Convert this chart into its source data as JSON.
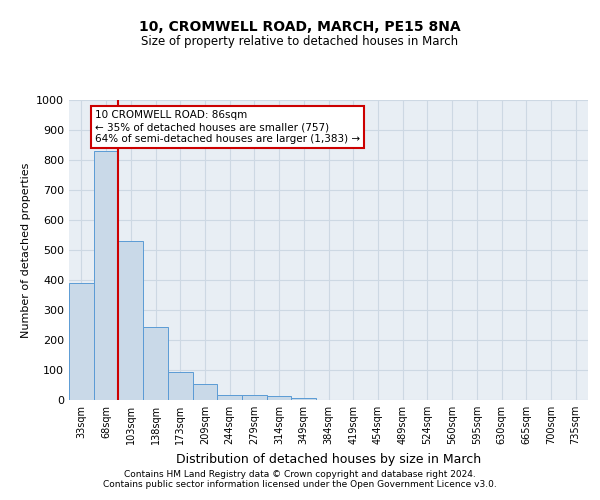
{
  "title1": "10, CROMWELL ROAD, MARCH, PE15 8NA",
  "title2": "Size of property relative to detached houses in March",
  "xlabel": "Distribution of detached houses by size in March",
  "ylabel": "Number of detached properties",
  "bar_labels": [
    "33sqm",
    "68sqm",
    "103sqm",
    "138sqm",
    "173sqm",
    "209sqm",
    "244sqm",
    "279sqm",
    "314sqm",
    "349sqm",
    "384sqm",
    "419sqm",
    "454sqm",
    "489sqm",
    "524sqm",
    "560sqm",
    "595sqm",
    "630sqm",
    "665sqm",
    "700sqm",
    "735sqm"
  ],
  "bar_values": [
    390,
    830,
    530,
    243,
    95,
    52,
    18,
    16,
    12,
    6,
    0,
    0,
    0,
    0,
    0,
    0,
    0,
    0,
    0,
    0,
    0
  ],
  "bar_color": "#c9d9e8",
  "bar_edge_color": "#5b9bd5",
  "grid_color": "#cdd8e3",
  "background_color": "#e8eef4",
  "annotation_line1": "10 CROMWELL ROAD: 86sqm",
  "annotation_line2": "← 35% of detached houses are smaller (757)",
  "annotation_line3": "64% of semi-detached houses are larger (1,383) →",
  "annotation_box_color": "#ffffff",
  "annotation_box_edge": "#cc0000",
  "vline_color": "#cc0000",
  "vline_x": 1.5,
  "ylim": [
    0,
    1000
  ],
  "yticks": [
    0,
    100,
    200,
    300,
    400,
    500,
    600,
    700,
    800,
    900,
    1000
  ],
  "footer1": "Contains HM Land Registry data © Crown copyright and database right 2024.",
  "footer2": "Contains public sector information licensed under the Open Government Licence v3.0."
}
